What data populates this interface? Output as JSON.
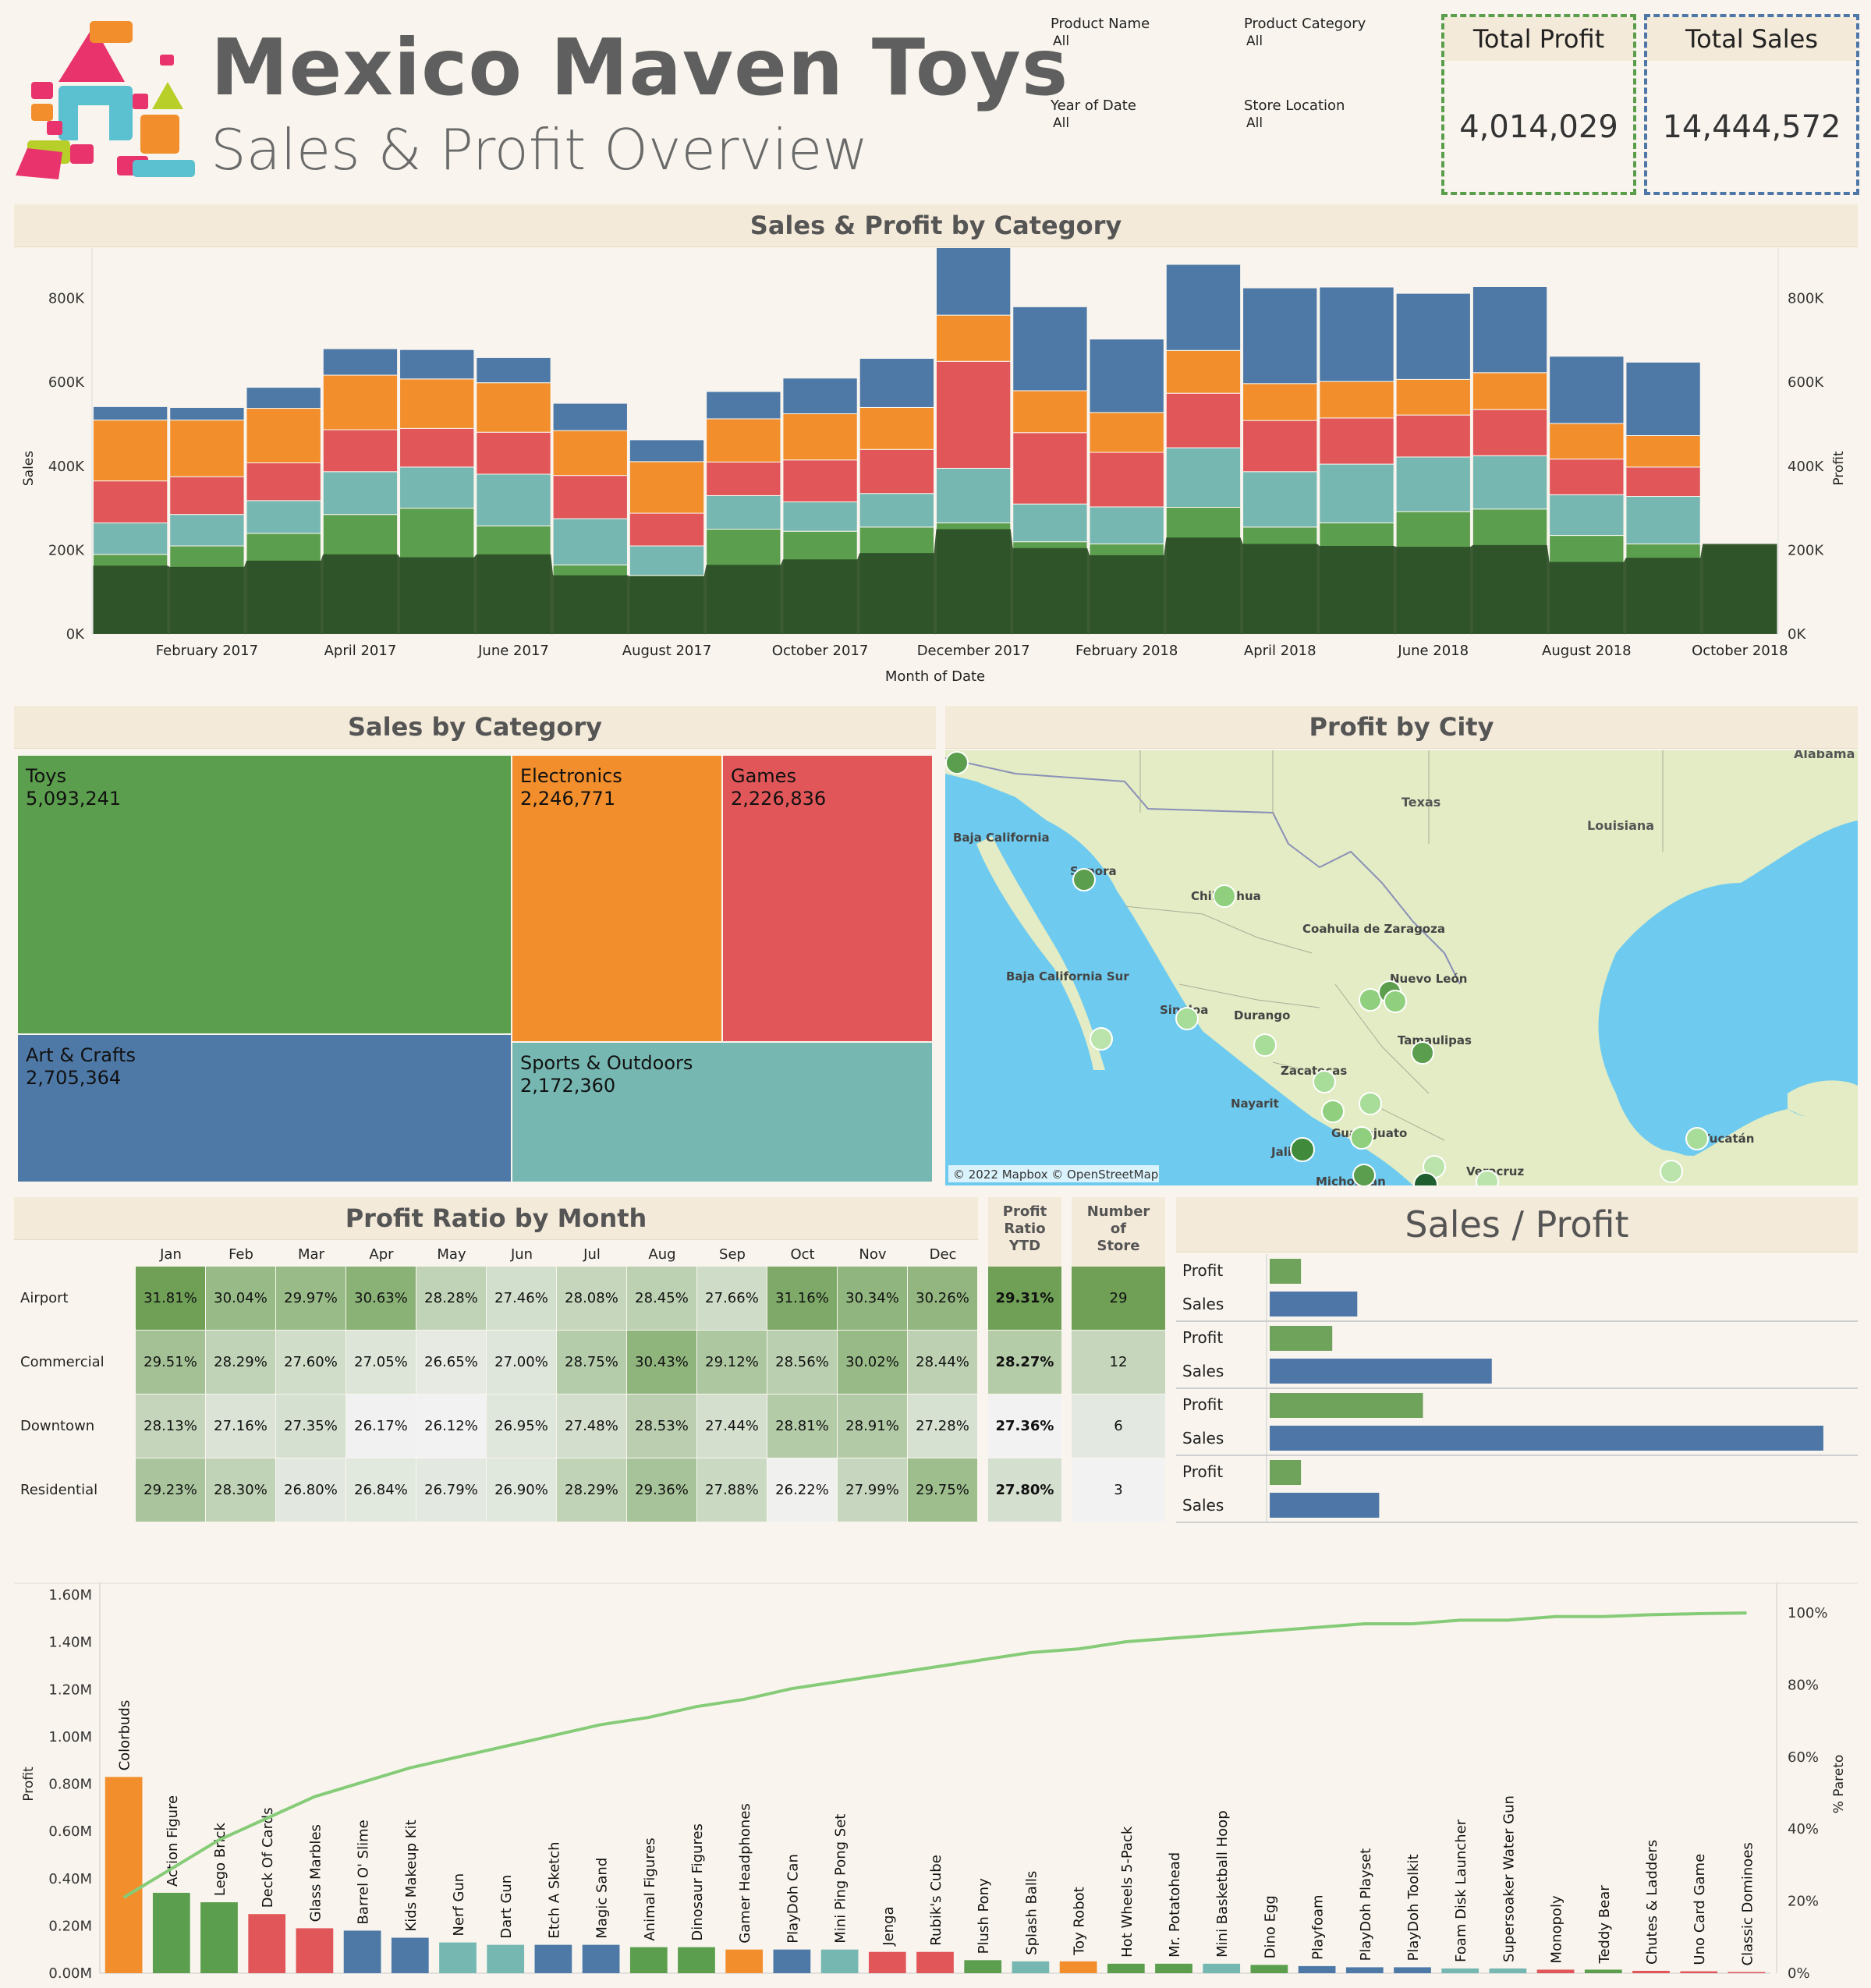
{
  "header": {
    "title": "Mexico Maven Toys",
    "subtitle": "Sales & Profit Overview",
    "filters": [
      {
        "label": "Product Name",
        "value": "All"
      },
      {
        "label": "Product Category",
        "value": "All"
      },
      {
        "label": "Year of Date",
        "value": "All"
      },
      {
        "label": "Store Location",
        "value": "All"
      }
    ],
    "kpis": [
      {
        "label": "Total Profit",
        "value": "4,014,029",
        "color": "#5a9e4c"
      },
      {
        "label": "Total Sales",
        "value": "14,444,572",
        "color": "#4e77a8"
      }
    ]
  },
  "colors": {
    "toys": "#5b9e4d",
    "electronics": "#f28e2c",
    "games": "#e15759",
    "art_crafts": "#4e79a7",
    "sports": "#76b7b2",
    "profit_area": "#2d4f27"
  },
  "chart_data": [
    {
      "type": "bar",
      "title": "Sales & Profit by Category",
      "xlabel": "Month of Date",
      "ylabel": "Sales",
      "y2label": "Profit",
      "ylim": [
        0,
        920000
      ],
      "yticks": [
        "0K",
        "200K",
        "400K",
        "600K",
        "800K"
      ],
      "ytick_values": [
        0,
        200000,
        400000,
        600000,
        800000
      ],
      "xtick_labels": [
        "February 2017",
        "April 2017",
        "June 2017",
        "August 2017",
        "October 2017",
        "December 2017",
        "February 2018",
        "April 2018",
        "June 2018",
        "August 2018",
        "October 2018"
      ],
      "xtick_indices": [
        1,
        3,
        5,
        7,
        9,
        11,
        13,
        15,
        17,
        19,
        21
      ],
      "stack_order": [
        "Toys",
        "Sports & Outdoors",
        "Games",
        "Electronics",
        "Art & Crafts"
      ],
      "series": [
        {
          "name": "Toys",
          "color": "#5b9e4d",
          "values": [
            190000,
            210000,
            240000,
            285000,
            300000,
            258000,
            165000,
            140000,
            250000,
            245000,
            255000,
            265000,
            220000,
            215000,
            302000,
            255000,
            265000,
            292000,
            298000,
            235000,
            215000,
            212000
          ]
        },
        {
          "name": "Sports & Outdoors",
          "color": "#76b7b2",
          "values": [
            75000,
            75000,
            78000,
            102000,
            98000,
            123000,
            110000,
            70000,
            80000,
            70000,
            80000,
            130000,
            90000,
            88000,
            142000,
            132000,
            140000,
            130000,
            127000,
            97000,
            113000,
            0
          ]
        },
        {
          "name": "Games",
          "color": "#e15759",
          "values": [
            100000,
            90000,
            90000,
            100000,
            92000,
            100000,
            103000,
            78000,
            80000,
            100000,
            105000,
            255000,
            170000,
            130000,
            130000,
            122000,
            110000,
            100000,
            110000,
            85000,
            70000,
            0
          ]
        },
        {
          "name": "Electronics",
          "color": "#f28e2c",
          "values": [
            145000,
            135000,
            130000,
            130000,
            118000,
            118000,
            107000,
            123000,
            103000,
            110000,
            100000,
            110000,
            100000,
            95000,
            102000,
            88000,
            87000,
            85000,
            88000,
            85000,
            75000,
            0
          ]
        },
        {
          "name": "Art & Crafts",
          "color": "#4e79a7",
          "values": [
            32000,
            30000,
            50000,
            63000,
            70000,
            60000,
            65000,
            52000,
            65000,
            85000,
            117000,
            190000,
            200000,
            175000,
            205000,
            228000,
            225000,
            205000,
            205000,
            160000,
            175000,
            0
          ]
        }
      ],
      "profit": {
        "name": "Profit",
        "color": "#2d4f27",
        "values": [
          163000,
          160000,
          175000,
          190000,
          183000,
          190000,
          140000,
          138000,
          165000,
          178000,
          193000,
          250000,
          205000,
          188000,
          230000,
          215000,
          210000,
          208000,
          212000,
          172000,
          182000,
          215000
        ]
      }
    },
    {
      "type": "treemap",
      "title": "Sales by Category",
      "items": [
        {
          "name": "Toys",
          "value": 5093241,
          "label": "5,093,241",
          "color": "#5b9e4d"
        },
        {
          "name": "Electronics",
          "value": 2246771,
          "label": "2,246,771",
          "color": "#f28e2c"
        },
        {
          "name": "Games",
          "value": 2226836,
          "label": "2,226,836",
          "color": "#e15759"
        },
        {
          "name": "Art & Crafts",
          "value": 2705364,
          "label": "2,705,364",
          "color": "#4e79a7"
        },
        {
          "name": "Sports & Outdoors",
          "value": 2172360,
          "label": "2,172,360",
          "color": "#76b7b2"
        }
      ]
    },
    {
      "type": "heatmap",
      "title": "Profit Ratio by Month",
      "columns": [
        "Jan",
        "Feb",
        "Mar",
        "Apr",
        "May",
        "Jun",
        "Jul",
        "Aug",
        "Sep",
        "Oct",
        "Nov",
        "Dec"
      ],
      "rows": [
        {
          "name": "Airport",
          "values": [
            31.81,
            30.04,
            29.97,
            30.63,
            28.28,
            27.46,
            28.08,
            28.45,
            27.66,
            31.16,
            30.34,
            30.26
          ],
          "labels": [
            "31.81%",
            "30.04%",
            "29.97%",
            "30.63%",
            "28.28%",
            "27.46%",
            "28.08%",
            "28.45%",
            "27.66%",
            "31.16%",
            "30.34%",
            "30.26%"
          ],
          "ytd": "29.31%",
          "ytd_value": 29.31,
          "stores": "29",
          "store_value": 29
        },
        {
          "name": "Commercial",
          "values": [
            29.51,
            28.29,
            27.6,
            27.05,
            26.65,
            27.0,
            28.75,
            30.43,
            29.12,
            28.56,
            30.02,
            28.44
          ],
          "labels": [
            "29.51%",
            "28.29%",
            "27.60%",
            "27.05%",
            "26.65%",
            "27.00%",
            "28.75%",
            "30.43%",
            "29.12%",
            "28.56%",
            "30.02%",
            "28.44%"
          ],
          "ytd": "28.27%",
          "ytd_value": 28.27,
          "stores": "12",
          "store_value": 12
        },
        {
          "name": "Downtown",
          "values": [
            28.13,
            27.16,
            27.35,
            26.17,
            26.12,
            26.95,
            27.48,
            28.53,
            27.44,
            28.81,
            28.91,
            27.28
          ],
          "labels": [
            "28.13%",
            "27.16%",
            "27.35%",
            "26.17%",
            "26.12%",
            "26.95%",
            "27.48%",
            "28.53%",
            "27.44%",
            "28.81%",
            "28.91%",
            "27.28%"
          ],
          "ytd": "27.36%",
          "ytd_value": 27.36,
          "stores": "6",
          "store_value": 6
        },
        {
          "name": "Residential",
          "values": [
            29.23,
            28.3,
            26.8,
            26.84,
            26.79,
            26.9,
            28.29,
            29.36,
            27.88,
            26.22,
            27.99,
            29.75
          ],
          "labels": [
            "29.23%",
            "28.30%",
            "26.80%",
            "26.84%",
            "26.79%",
            "26.90%",
            "28.29%",
            "29.36%",
            "27.88%",
            "26.22%",
            "27.99%",
            "29.75%"
          ],
          "ytd": "27.80%",
          "ytd_value": 27.8,
          "stores": "3",
          "store_value": 3
        }
      ],
      "ytd_header": [
        "Profit",
        "Ratio",
        "YTD"
      ],
      "stores_header": [
        "Number",
        "of",
        "Store"
      ]
    },
    {
      "type": "bar",
      "title": "Sales / Profit",
      "groups": [
        {
          "profit": 1.0,
          "sales": 2.8
        },
        {
          "profit": 2.0,
          "sales": 7.1
        },
        {
          "profit": 4.9,
          "sales": 17.7
        },
        {
          "profit": 1.0,
          "sales": 3.5
        }
      ],
      "labels": {
        "profit": "Profit",
        "sales": "Sales"
      },
      "xlim": [
        0,
        18.5
      ]
    },
    {
      "type": "bar",
      "title": "",
      "ylabel": "Profit",
      "y2label": "% Pareto",
      "ylim": [
        0,
        1.6
      ],
      "yticks": [
        "0.00M",
        "0.20M",
        "0.40M",
        "0.60M",
        "0.80M",
        "1.00M",
        "1.20M",
        "1.40M",
        "1.60M"
      ],
      "y2ticks": [
        "0%",
        "20%",
        "40%",
        "60%",
        "80%",
        "100%"
      ],
      "categories": [
        "Colorbuds",
        "Action Figure",
        "Lego Brick",
        "Deck Of Cards",
        "Glass Marbles",
        "Barrel O' Slime",
        "Kids Makeup Kit",
        "Nerf Gun",
        "Dart Gun",
        "Etch A Sketch",
        "Magic Sand",
        "Animal Figures",
        "Dinosaur Figures",
        "Gamer Headphones",
        "PlayDoh Can",
        "Mini Ping Pong Set",
        "Jenga",
        "Rubik's Cube",
        "Plush Pony",
        "Splash Balls",
        "Toy Robot",
        "Hot Wheels 5-Pack",
        "Mr. Potatohead",
        "Mini Basketball Hoop",
        "Dino Egg",
        "Playfoam",
        "PlayDoh Playset",
        "PlayDoh Toolkit",
        "Foam Disk Launcher",
        "Supersoaker Water Gun",
        "Monopoly",
        "Teddy Bear",
        "Chutes & Ladders",
        "Uno Card Game",
        "Classic Dominoes"
      ],
      "values": [
        0.83,
        0.34,
        0.3,
        0.25,
        0.19,
        0.18,
        0.15,
        0.13,
        0.12,
        0.12,
        0.12,
        0.11,
        0.11,
        0.1,
        0.1,
        0.1,
        0.09,
        0.09,
        0.055,
        0.05,
        0.05,
        0.04,
        0.04,
        0.04,
        0.035,
        0.03,
        0.025,
        0.025,
        0.02,
        0.02,
        0.015,
        0.015,
        0.01,
        0.008,
        0.005
      ],
      "colors": [
        "#f28e2c",
        "#5b9e4d",
        "#5b9e4d",
        "#e15759",
        "#e15759",
        "#4e79a7",
        "#4e79a7",
        "#76b7b2",
        "#76b7b2",
        "#4e79a7",
        "#4e79a7",
        "#5b9e4d",
        "#5b9e4d",
        "#f28e2c",
        "#4e79a7",
        "#76b7b2",
        "#e15759",
        "#e15759",
        "#5b9e4d",
        "#76b7b2",
        "#f28e2c",
        "#5b9e4d",
        "#5b9e4d",
        "#76b7b2",
        "#5b9e4d",
        "#4e79a7",
        "#4e79a7",
        "#4e79a7",
        "#76b7b2",
        "#76b7b2",
        "#e15759",
        "#5b9e4d",
        "#e15759",
        "#e15759",
        "#e15759"
      ],
      "pareto": [
        0.21,
        0.29,
        0.37,
        0.43,
        0.49,
        0.53,
        0.57,
        0.6,
        0.63,
        0.66,
        0.69,
        0.71,
        0.74,
        0.76,
        0.79,
        0.81,
        0.83,
        0.85,
        0.87,
        0.89,
        0.9,
        0.92,
        0.93,
        0.94,
        0.95,
        0.96,
        0.97,
        0.97,
        0.98,
        0.98,
        0.99,
        0.99,
        0.995,
        0.998,
        1.0
      ],
      "pareto_color": "#86cc78"
    }
  ],
  "map": {
    "title": "Profit by City",
    "attribution": "© 2022 Mapbox © OpenStreetMap",
    "labels": [
      "Alabama",
      "Texas",
      "Louisiana",
      "Baja California",
      "Sonora",
      "Chihuahua",
      "Coahuila de Zaragoza",
      "Baja California Sur",
      "Sinaloa",
      "Durango",
      "Nuevo León",
      "Tamaulipas",
      "Zacatecas",
      "Nayarit",
      "Guanajuato",
      "Jalisco",
      "Michoacán",
      "Veracruz",
      "Yucatán"
    ]
  }
}
